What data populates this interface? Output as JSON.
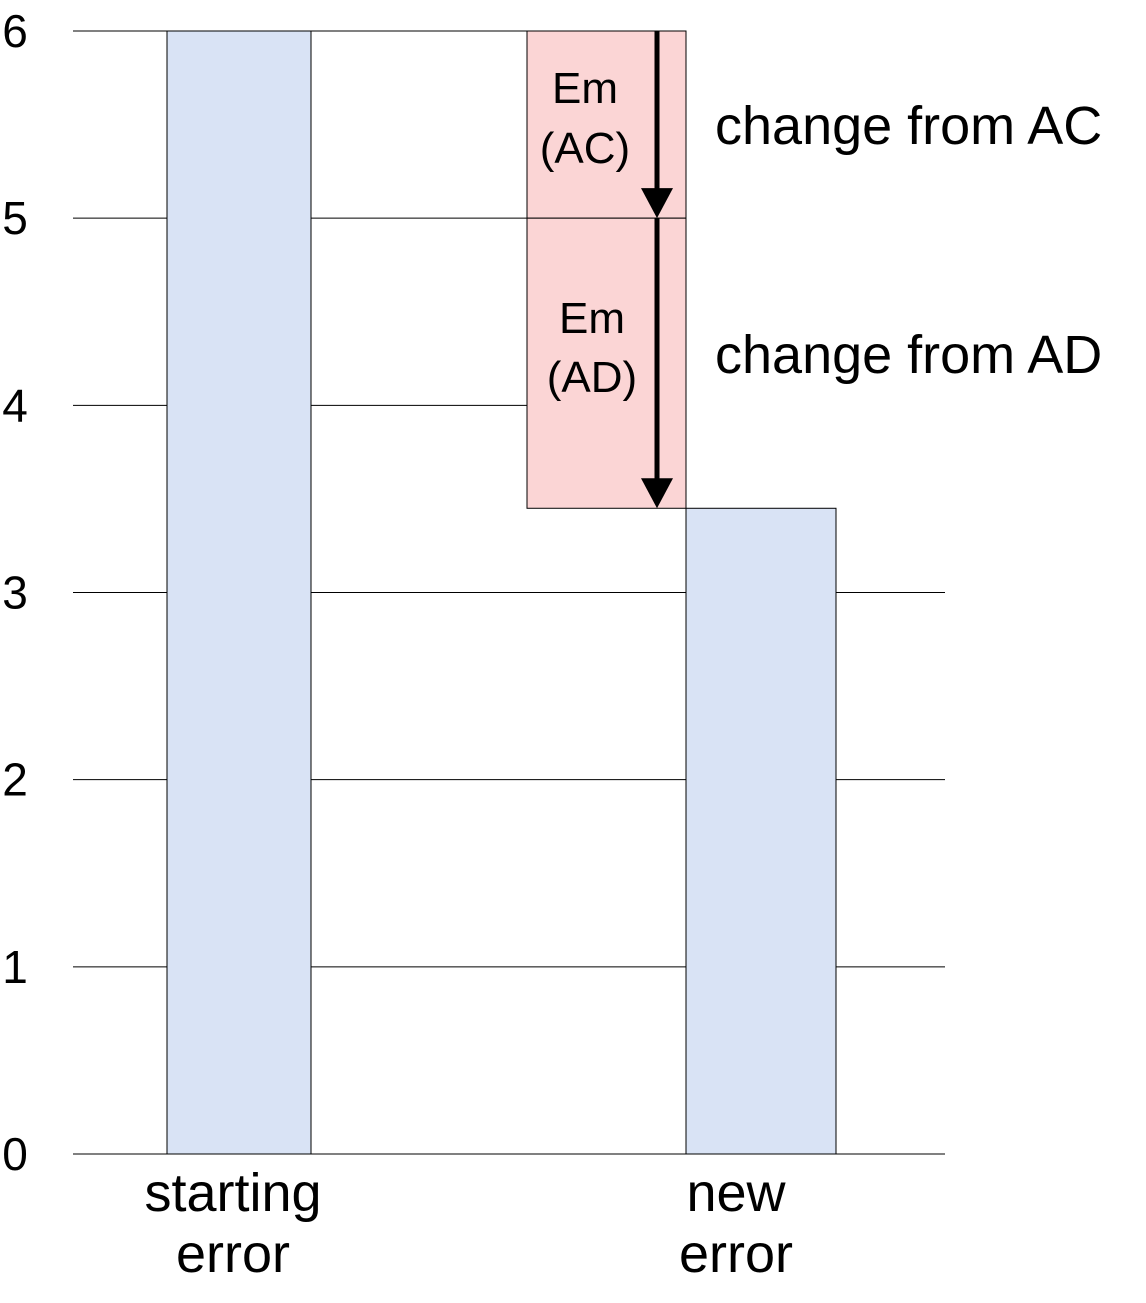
{
  "chart_data": {
    "type": "bar",
    "title": "",
    "xlabel": "",
    "ylabel": "",
    "ylim": [
      0,
      6
    ],
    "yticks": [
      "0",
      "1",
      "2",
      "3",
      "4",
      "5",
      "6"
    ],
    "grid": true,
    "categories": [
      {
        "label_lines": [
          "starting",
          "error"
        ],
        "value": 6
      },
      {
        "label_lines": [
          "new",
          "error"
        ],
        "value": 3.45
      }
    ],
    "decrements": [
      {
        "label_lines": [
          "Em",
          "(AC)"
        ],
        "from": 6,
        "to": 5,
        "annotation": "change from AC"
      },
      {
        "label_lines": [
          "Em",
          "(AD)"
        ],
        "from": 5,
        "to": 3.45,
        "annotation": "change from AD"
      }
    ],
    "colors": {
      "bar": "#d9e3f5",
      "decrement": "#fbd5d5",
      "grid": "#000000",
      "arrow": "#000000"
    }
  }
}
